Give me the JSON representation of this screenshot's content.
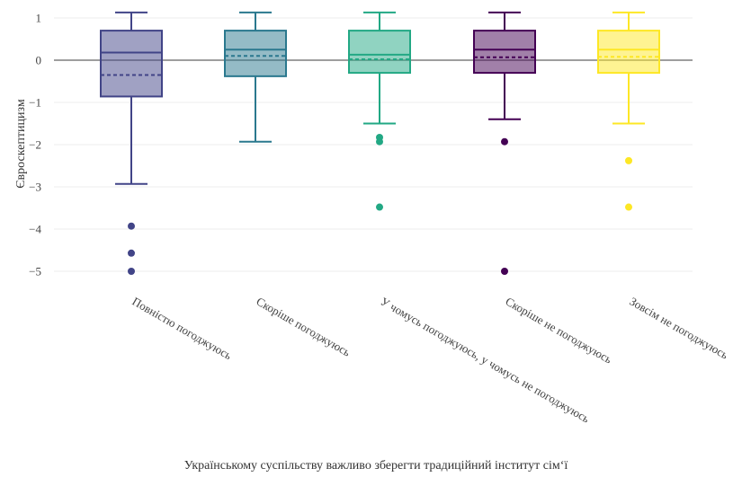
{
  "chart_data": {
    "type": "box",
    "xlabel": "Українському суспільству важливо зберегти традиційний інститут сім‘ї",
    "ylabel": "Євроскептицизм",
    "ylim": [
      -5.35,
      1.2
    ],
    "yticks": [
      1,
      0,
      -1,
      -2,
      -3,
      -4,
      -5
    ],
    "ytick_labels": [
      "1",
      "0",
      "−1",
      "−2",
      "−3",
      "−4",
      "−5"
    ],
    "grid": true,
    "zero_line": true,
    "categories": [
      "Повністю погоджуюсь",
      "Скоріше погоджуюсь",
      "У чомусь погоджуюсь, у чомусь не погоджуюсь",
      "Скоріше не погоджуюсь",
      "Зовсім не погоджуюсь"
    ],
    "boxes": [
      {
        "category": "Повністю погоджуюсь",
        "color": "#414487",
        "whisker_low": -2.93,
        "q1": -0.86,
        "median": 0.18,
        "mean": -0.35,
        "q3": 0.7,
        "whisker_high": 1.13,
        "outliers": [
          -3.93,
          -4.57,
          -5.0
        ]
      },
      {
        "category": "Скоріше погоджуюсь",
        "color": "#2a788e",
        "whisker_low": -1.93,
        "q1": -0.38,
        "median": 0.25,
        "mean": 0.1,
        "q3": 0.7,
        "whisker_high": 1.13,
        "outliers": []
      },
      {
        "category": "У чомусь погоджуюсь, у чомусь не погоджуюсь",
        "color": "#22a884",
        "whisker_low": -1.5,
        "q1": -0.3,
        "median": 0.13,
        "mean": 0.02,
        "q3": 0.7,
        "whisker_high": 1.13,
        "outliers": [
          -1.83,
          -1.93,
          -3.48
        ]
      },
      {
        "category": "Скоріше не погоджуюсь",
        "color": "#440154",
        "whisker_low": -1.4,
        "q1": -0.3,
        "median": 0.25,
        "mean": 0.07,
        "q3": 0.7,
        "whisker_high": 1.13,
        "outliers": [
          -1.93,
          -5.0
        ]
      },
      {
        "category": "Зовсім не погоджуюсь",
        "color": "#fde725",
        "whisker_low": -1.5,
        "q1": -0.3,
        "median": 0.25,
        "mean": 0.08,
        "q3": 0.7,
        "whisker_high": 1.13,
        "outliers": [
          -2.38,
          -3.48
        ]
      }
    ]
  }
}
